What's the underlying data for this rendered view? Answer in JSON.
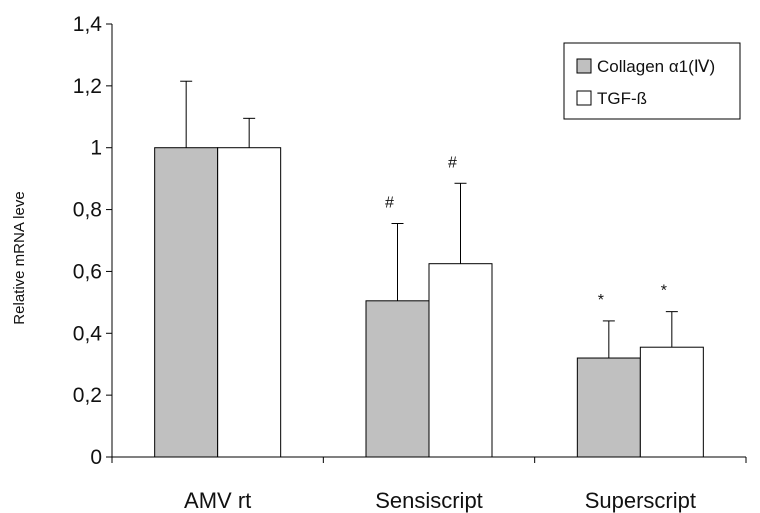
{
  "chart_data": {
    "type": "bar",
    "categories": [
      "AMV rt",
      "Sensiscript",
      "Superscript"
    ],
    "series": [
      {
        "name": "Collagen α1(Ⅳ)",
        "color": "#c0c0c0",
        "values": [
          1.0,
          0.505,
          0.32
        ],
        "errors": [
          0.215,
          0.25,
          0.12
        ],
        "annotations": [
          "",
          "#",
          "*"
        ]
      },
      {
        "name": "TGF-ß",
        "color": "#ffffff",
        "values": [
          1.0,
          0.625,
          0.355
        ],
        "errors": [
          0.095,
          0.26,
          0.115
        ],
        "annotations": [
          "",
          "#",
          "*"
        ]
      }
    ],
    "ylabel": "Relative mRNA leve",
    "ylim": [
      0,
      1.4
    ],
    "yticks": [
      0,
      0.2,
      0.4,
      0.6,
      0.8,
      1.0,
      1.2,
      1.4
    ],
    "ytick_labels": [
      "0",
      "0,2",
      "0,4",
      "0,6",
      "0,8",
      "1",
      "1,2",
      "1,4"
    ],
    "grid": false,
    "legend_position": "top-right"
  }
}
